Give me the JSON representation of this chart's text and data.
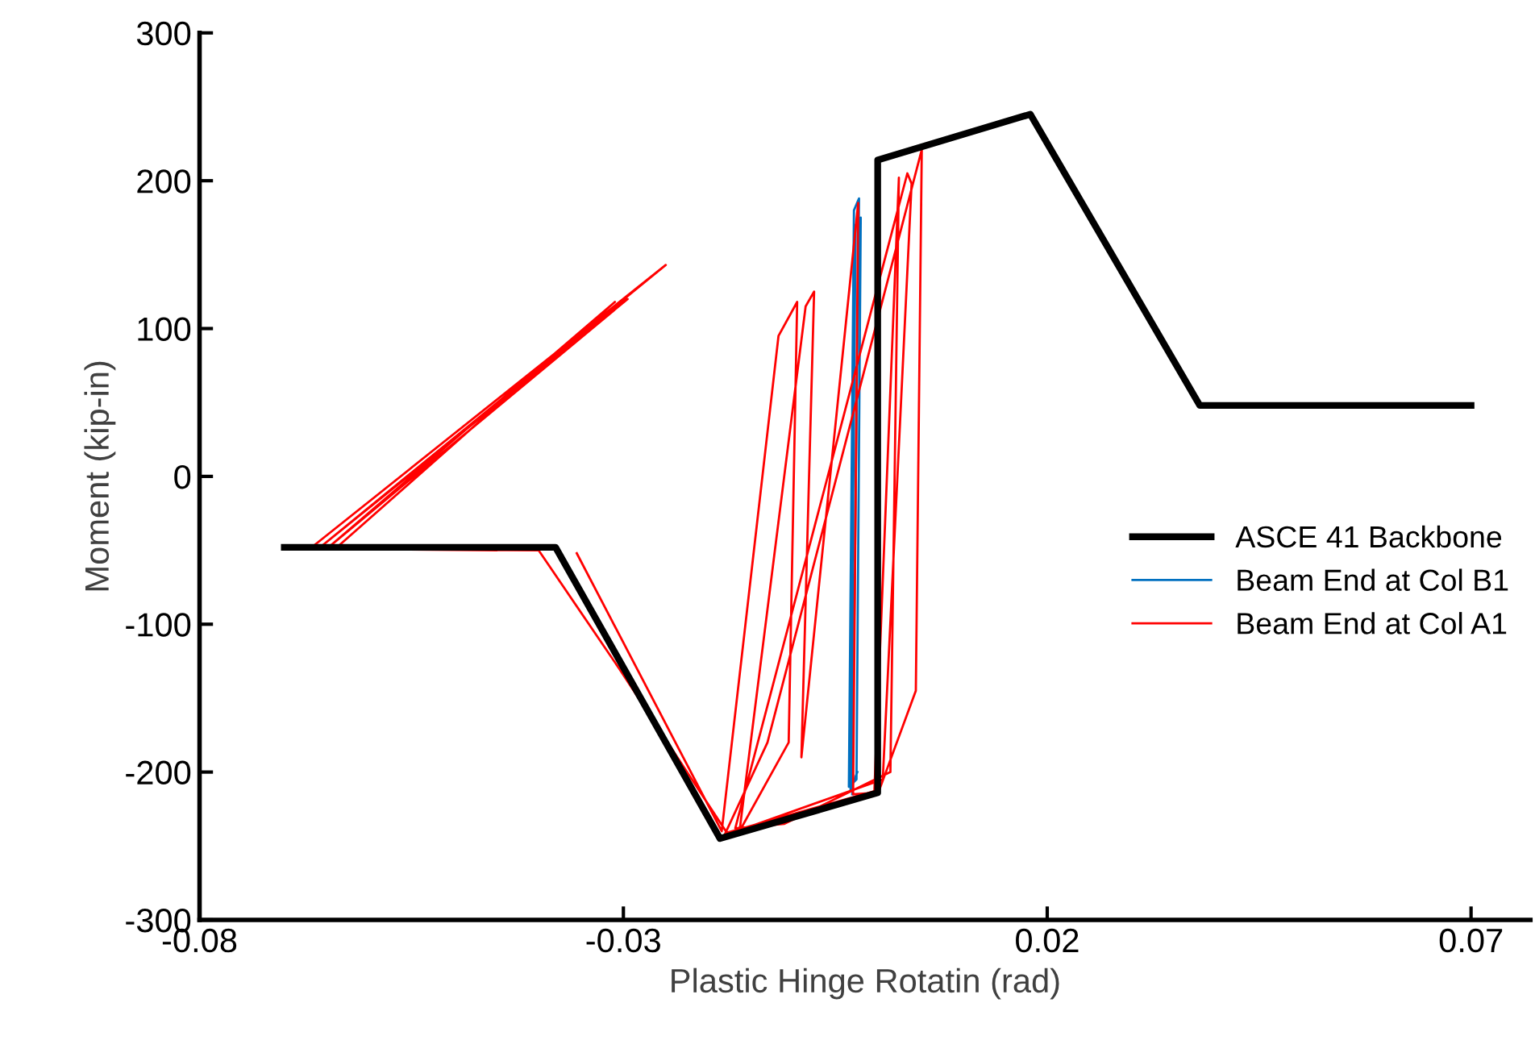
{
  "chart_data": {
    "type": "line",
    "xlabel": "Plastic Hinge Rotatin (rad)",
    "ylabel": "Moment (kip-in)",
    "xlim": [
      -0.08,
      0.077
    ],
    "xticks": [
      -0.08,
      -0.03,
      0.02,
      0.07
    ],
    "ylim": [
      -300,
      300
    ],
    "yticks": [
      -300,
      -200,
      -100,
      0,
      100,
      200,
      300
    ],
    "grid": false,
    "legend": "right",
    "marker": "none",
    "line_style": "solid",
    "series": [
      {
        "name": "ASCE 41 Backbone",
        "color": "#000000",
        "x": [
          -0.07,
          -0.038,
          -0.0186,
          0.0,
          0.0,
          0.018,
          0.038,
          0.07
        ],
        "values": [
          -48,
          -48,
          -245,
          -214,
          214,
          245,
          48,
          48
        ]
      },
      {
        "name": "Beam End at Col B1",
        "color": "#0070c0",
        "x": [
          -0.003,
          -0.0022,
          -0.0028,
          -0.0034,
          -0.0025,
          -0.002,
          -0.0026,
          -0.0032,
          -0.0024
        ],
        "values": [
          -215,
          188,
          180,
          -210,
          -205,
          175,
          170,
          -212,
          -200
        ]
      },
      {
        "name": "Beam End at Col A1",
        "color": "#ff0000",
        "x": [
          -0.0355,
          -0.0184,
          -0.0117,
          -0.0095,
          -0.0105,
          -0.0163,
          -0.0085,
          -0.0075,
          -0.009,
          -0.0023,
          -0.0029,
          -0.0004,
          0.0025,
          0.0015,
          -0.011,
          -0.0168,
          0.0035,
          0.004,
          0.0006,
          -0.0181,
          -0.013,
          0.0052,
          0.0045,
          0.0002,
          -0.0178,
          -0.0305,
          -0.04,
          -0.067,
          -0.025,
          -0.066,
          -0.0295,
          -0.065,
          -0.031,
          -0.064,
          -0.045
        ],
        "values": [
          -52,
          -240,
          95,
          118,
          -180,
          -240,
          115,
          125,
          -190,
          185,
          -215,
          -214,
          202,
          -200,
          -235,
          -238,
          205,
          198,
          -205,
          -243,
          -180,
          221,
          -145,
          -212,
          -241,
          -130,
          -50,
          -49,
          143,
          -49,
          120,
          -49,
          118,
          -49,
          -50
        ]
      }
    ]
  }
}
